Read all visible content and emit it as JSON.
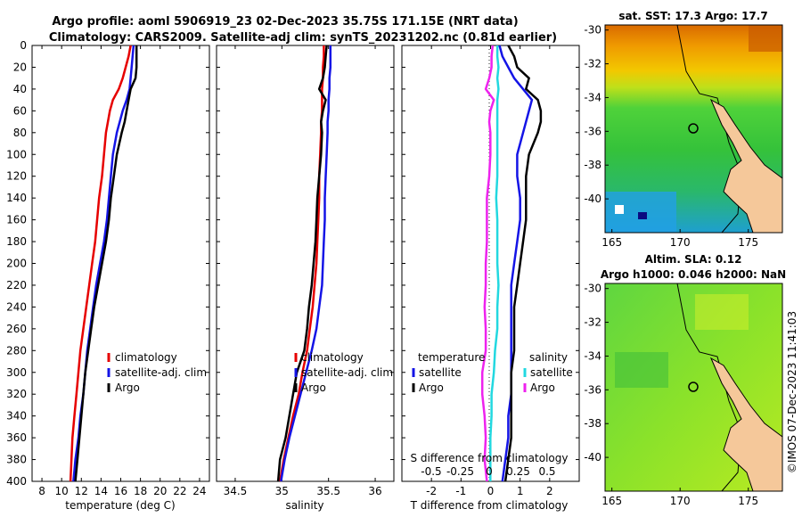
{
  "title": {
    "line1": "Argo profile: aoml 5906919_23 02-Dec-2023 35.75S 171.15E (NRT data)",
    "line2": "Climatology: CARS2009. Satellite-adj clim: synTS_20231202.nc (0.81d earlier)"
  },
  "side_label": "©IMOS 07-Dec-2023 11:41:03",
  "colors": {
    "clim": "#e60000",
    "sat": "#1414e6",
    "argo": "#000000",
    "sat_s": "#22d8e0",
    "argo_s": "#ee22ee"
  },
  "chart_data": [
    {
      "type": "line",
      "name": "temperature-panel",
      "xlabel": "temperature (deg C)",
      "xlim": [
        7,
        25
      ],
      "ylim": [
        400,
        0
      ],
      "xticks": [
        "8",
        "10",
        "12",
        "14",
        "16",
        "18",
        "20",
        "22",
        "24"
      ],
      "yticks": [
        "0",
        "20",
        "40",
        "60",
        "80",
        "100",
        "120",
        "140",
        "160",
        "180",
        "200",
        "220",
        "240",
        "260",
        "280",
        "300",
        "320",
        "340",
        "360",
        "380",
        "400"
      ],
      "legend": [
        "climatology",
        "satellite-adj. clim",
        "Argo"
      ],
      "depth": [
        0,
        10,
        20,
        30,
        40,
        50,
        60,
        70,
        80,
        100,
        120,
        140,
        160,
        180,
        200,
        220,
        240,
        260,
        280,
        300,
        320,
        340,
        360,
        380,
        400
      ],
      "series": [
        {
          "name": "climatology",
          "color": "#e60000",
          "values": [
            17.0,
            16.8,
            16.5,
            16.2,
            15.8,
            15.2,
            14.9,
            14.7,
            14.5,
            14.3,
            14.1,
            13.8,
            13.6,
            13.4,
            13.1,
            12.8,
            12.5,
            12.2,
            11.9,
            11.7,
            11.5,
            11.3,
            11.1,
            11.0,
            10.9
          ]
        },
        {
          "name": "satellite-adj. clim",
          "color": "#1414e6",
          "values": [
            17.3,
            17.2,
            17.1,
            17.0,
            16.9,
            16.6,
            16.2,
            15.9,
            15.6,
            15.2,
            15.0,
            14.8,
            14.6,
            14.3,
            13.9,
            13.5,
            13.2,
            12.9,
            12.6,
            12.4,
            12.2,
            11.9,
            11.7,
            11.4,
            11.2
          ]
        },
        {
          "name": "Argo",
          "color": "#000000",
          "values": [
            17.6,
            17.6,
            17.6,
            17.5,
            17.0,
            16.8,
            16.6,
            16.4,
            16.1,
            15.6,
            15.3,
            15.0,
            14.8,
            14.5,
            14.1,
            13.7,
            13.3,
            13.0,
            12.7,
            12.4,
            12.2,
            12.0,
            11.8,
            11.6,
            11.4
          ]
        }
      ]
    },
    {
      "type": "line",
      "name": "salinity-panel",
      "xlabel": "salinity",
      "xlim": [
        34.3,
        36.2
      ],
      "ylim": [
        400,
        0
      ],
      "xticks": [
        "34.5",
        "35",
        "35.5",
        "36"
      ],
      "legend": [
        "climatology",
        "satellite-adj. clim",
        "Argo"
      ],
      "depth": [
        0,
        10,
        20,
        30,
        40,
        50,
        60,
        70,
        80,
        100,
        120,
        140,
        160,
        180,
        200,
        220,
        240,
        260,
        280,
        300,
        320,
        340,
        360,
        380,
        400
      ],
      "series": [
        {
          "name": "climatology",
          "color": "#e60000",
          "values": [
            35.45,
            35.45,
            35.44,
            35.44,
            35.43,
            35.43,
            35.43,
            35.42,
            35.42,
            35.41,
            35.4,
            35.4,
            35.39,
            35.38,
            35.37,
            35.35,
            35.33,
            35.3,
            35.27,
            35.22,
            35.18,
            35.12,
            35.07,
            35.02,
            34.98
          ]
        },
        {
          "name": "satellite-adj. clim",
          "color": "#1414e6",
          "values": [
            35.52,
            35.52,
            35.52,
            35.51,
            35.51,
            35.5,
            35.5,
            35.49,
            35.49,
            35.48,
            35.47,
            35.46,
            35.46,
            35.45,
            35.44,
            35.43,
            35.4,
            35.37,
            35.32,
            35.26,
            35.2,
            35.14,
            35.08,
            35.03,
            34.99
          ]
        },
        {
          "name": "Argo",
          "color": "#000000",
          "values": [
            35.48,
            35.47,
            35.46,
            35.44,
            35.4,
            35.47,
            35.44,
            35.42,
            35.43,
            35.42,
            35.4,
            35.38,
            35.37,
            35.36,
            35.34,
            35.32,
            35.29,
            35.27,
            35.24,
            35.16,
            35.12,
            35.08,
            35.04,
            34.98,
            34.96
          ]
        }
      ]
    },
    {
      "type": "line",
      "name": "difference-panel",
      "xlabel": "T difference from climatology",
      "xlabel_top": "S difference from climatology",
      "xlim": [
        -3,
        3
      ],
      "ylim": [
        400,
        0
      ],
      "xticks": [
        "-2",
        "-1",
        "0",
        "1",
        "2"
      ],
      "xticks_s": [
        "-0.5",
        "-0.25",
        "0",
        "0.25",
        "0.5"
      ],
      "legend_t_title": "temperature",
      "legend_s_title": "salinity",
      "legend_t": [
        "satellite",
        "Argo"
      ],
      "legend_s": [
        "satellite",
        "Argo"
      ],
      "depth": [
        0,
        10,
        20,
        30,
        40,
        50,
        60,
        70,
        80,
        100,
        120,
        140,
        160,
        180,
        200,
        220,
        240,
        260,
        280,
        300,
        320,
        340,
        360,
        380,
        400
      ],
      "series": [
        {
          "name": "T satellite",
          "color": "#1414e6",
          "values": [
            0.3,
            0.4,
            0.6,
            0.8,
            1.1,
            1.4,
            1.3,
            1.2,
            1.1,
            0.9,
            0.9,
            1.0,
            1.0,
            0.9,
            0.8,
            0.7,
            0.7,
            0.7,
            0.7,
            0.7,
            0.7,
            0.6,
            0.6,
            0.5,
            0.4
          ]
        },
        {
          "name": "T Argo",
          "color": "#000000",
          "values": [
            0.6,
            0.8,
            0.9,
            1.3,
            1.2,
            1.6,
            1.7,
            1.7,
            1.6,
            1.3,
            1.2,
            1.2,
            1.2,
            1.1,
            1.0,
            0.9,
            0.8,
            0.8,
            0.8,
            0.7,
            0.7,
            0.7,
            0.7,
            0.6,
            0.5
          ]
        },
        {
          "name": "S satellite",
          "color": "#22d8e0",
          "values": [
            0.07,
            0.07,
            0.08,
            0.07,
            0.08,
            0.07,
            0.07,
            0.07,
            0.07,
            0.07,
            0.07,
            0.06,
            0.07,
            0.07,
            0.07,
            0.08,
            0.07,
            0.07,
            0.05,
            0.04,
            0.02,
            0.02,
            0.01,
            0.01,
            0.01
          ]
        },
        {
          "name": "S Argo",
          "color": "#ee22ee",
          "values": [
            0.03,
            0.02,
            0.02,
            0.0,
            -0.03,
            0.04,
            0.01,
            0.0,
            0.01,
            0.01,
            0.0,
            -0.02,
            -0.02,
            -0.02,
            -0.03,
            -0.03,
            -0.04,
            -0.03,
            -0.03,
            -0.06,
            -0.06,
            -0.04,
            -0.03,
            -0.04,
            -0.02
          ]
        }
      ]
    },
    {
      "type": "heatmap",
      "name": "sst-map",
      "title": "sat. SST: 17.3  Argo: 17.7",
      "xticks": [
        "165",
        "170",
        "175"
      ],
      "yticks": [
        "-30",
        "-32",
        "-34",
        "-36",
        "-38",
        "-40"
      ],
      "xlim": [
        164.5,
        177.5
      ],
      "ylim": [
        -42,
        -29.7
      ],
      "profile": {
        "lon": 171.15,
        "lat": -35.75
      }
    },
    {
      "type": "heatmap",
      "name": "sla-map",
      "title": "Altim. SLA: 0.12",
      "subtitle": "Argo h1000: 0.046  h2000: NaN",
      "xticks": [
        "165",
        "170",
        "175"
      ],
      "yticks": [
        "-30",
        "-32",
        "-34",
        "-36",
        "-38",
        "-40"
      ],
      "xlim": [
        164.5,
        177.5
      ],
      "ylim": [
        -42,
        -29.7
      ],
      "profile": {
        "lon": 171.15,
        "lat": -35.75
      }
    }
  ]
}
